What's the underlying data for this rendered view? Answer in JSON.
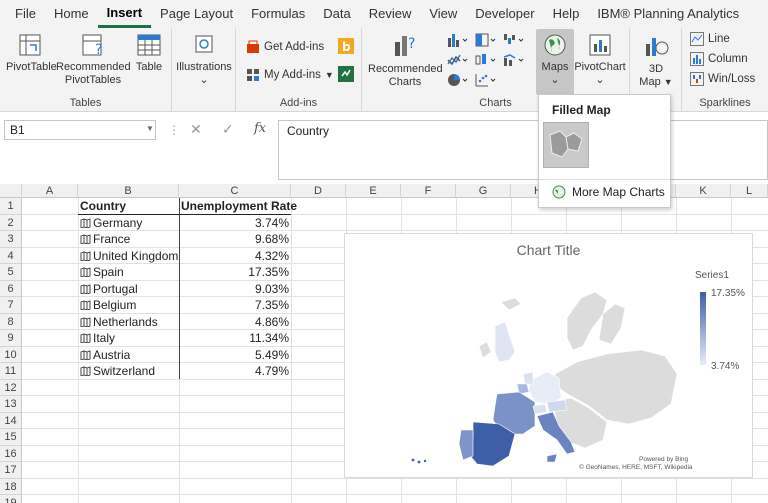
{
  "menu": [
    "File",
    "Home",
    "Insert",
    "Page Layout",
    "Formulas",
    "Data",
    "Review",
    "View",
    "Developer",
    "Help",
    "IBM® Planning Analytics"
  ],
  "ribbon": {
    "tables": {
      "label": "Tables",
      "pivot": "PivotTable",
      "recommended_pivot_1": "Recommended",
      "recommended_pivot_2": "PivotTables",
      "table": "Table"
    },
    "illustrations": {
      "label": "Illustrations"
    },
    "addins": {
      "label": "Add-ins",
      "get": "Get Add-ins",
      "my": "My Add-ins"
    },
    "charts": {
      "label": "Charts",
      "recommended_1": "Recommended",
      "recommended_2": "Charts",
      "maps": "Maps",
      "pivotchart": "PivotChart"
    },
    "tours": {
      "map3d_1": "3D",
      "map3d_2": "Map"
    },
    "sparklines": {
      "label": "Sparklines",
      "line": "Line",
      "column": "Column",
      "winloss": "Win/Loss"
    }
  },
  "formula_bar": {
    "name_box": "B1",
    "content": "Country"
  },
  "columns": [
    "A",
    "B",
    "C",
    "D",
    "E",
    "F",
    "G",
    "H",
    "I",
    "J",
    "K",
    "L"
  ],
  "rows": [
    "1",
    "2",
    "3",
    "4",
    "5",
    "6",
    "7",
    "8",
    "9",
    "10",
    "11",
    "12",
    "13",
    "14",
    "15",
    "16",
    "17",
    "18",
    "19"
  ],
  "table": {
    "header_country": "Country",
    "header_rate": "Unemployment Rate",
    "rows": [
      {
        "country": "Germany",
        "rate": "3.74%"
      },
      {
        "country": "France",
        "rate": "9.68%"
      },
      {
        "country": "United Kingdom",
        "rate": "4.32%"
      },
      {
        "country": "Spain",
        "rate": "17.35%"
      },
      {
        "country": "Portugal",
        "rate": "9.03%"
      },
      {
        "country": "Belgium",
        "rate": "7.35%"
      },
      {
        "country": "Netherlands",
        "rate": "4.86%"
      },
      {
        "country": "Italy",
        "rate": "11.34%"
      },
      {
        "country": "Austria",
        "rate": "5.49%"
      },
      {
        "country": "Switzerland",
        "rate": "4.79%"
      }
    ]
  },
  "chart": {
    "title": "Chart Title",
    "legend_title": "Series1",
    "legend_max": "17.35%",
    "legend_min": "3.74%",
    "attribution_1": "Powered by Bing",
    "attribution_2": "© GeoNames, HERE, MSFT, Wikipedia",
    "colors": {
      "high": "#3e5ea8",
      "low": "#e8ecf6",
      "nodata": "#dcdcdc"
    }
  },
  "dropdown": {
    "header": "Filled Map",
    "more": "More Map Charts"
  }
}
